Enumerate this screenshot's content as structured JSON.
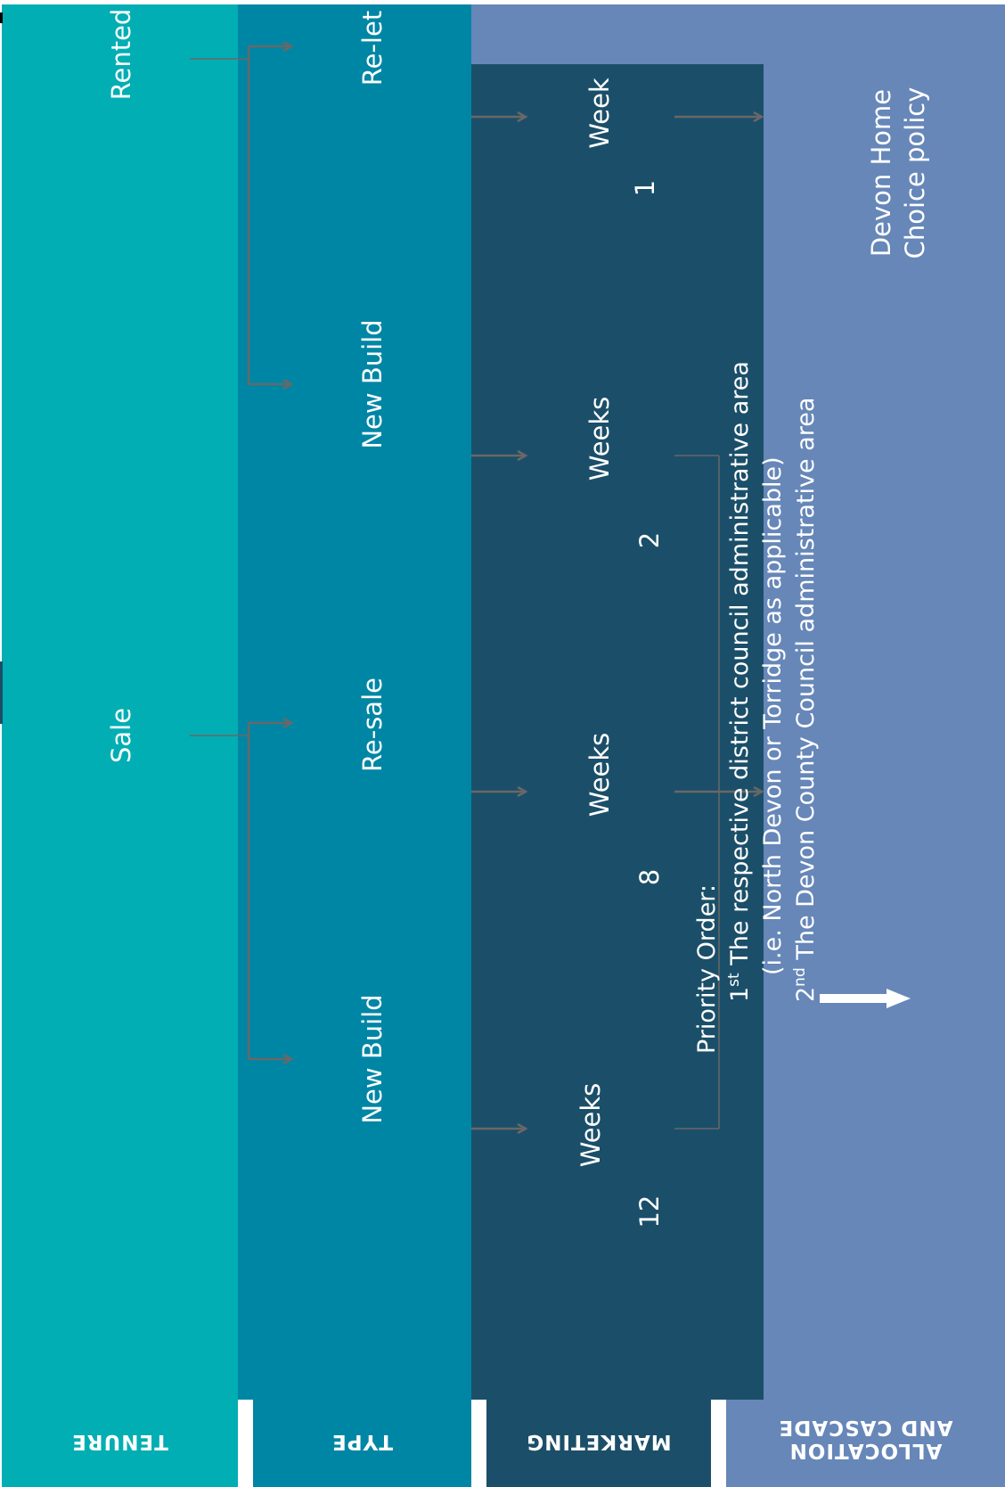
{
  "colors": {
    "tenure": "#00AEB3",
    "type": "#0086A5",
    "marketing": "#1B4F69",
    "allocation": "#6687B8",
    "connector": "#6B6766"
  },
  "headers": {
    "tenure": "TENURE",
    "type": "TYPE",
    "marketing": "MARKETING",
    "allocation_line1": "ALLOCATION",
    "allocation_line2": "AND CASCADE"
  },
  "tenure": {
    "rented": "Rented",
    "sale": "Sale"
  },
  "type": {
    "relet": "Re-let",
    "new_build_rented": "New Build",
    "resale": "Re-sale",
    "new_build_sale": "New Build"
  },
  "marketing": {
    "relet": {
      "unit": "Week",
      "number": "1"
    },
    "new_build_rented": {
      "unit": "Weeks",
      "number": "2"
    },
    "resale": {
      "unit": "Weeks",
      "number": "8"
    },
    "new_build_sale": {
      "unit": "Weeks",
      "number": "12"
    }
  },
  "allocation": {
    "policy_line1": "Devon Home",
    "policy_line2": "Choice policy",
    "priority_title": "Priority Order:",
    "first_ordinal": "1",
    "first_sup": "st",
    "first_text": " The respective district council administrative area",
    "first_note": "(i.e. North Devon or  Torridge as applicable)",
    "second_ordinal": "2",
    "second_sup": "nd",
    "second_text": " The Devon County Council administrative area"
  }
}
